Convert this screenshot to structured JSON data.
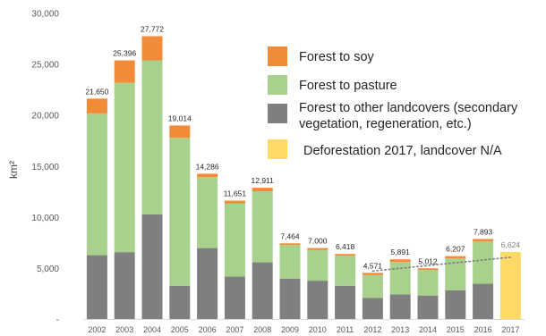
{
  "chart_data": {
    "type": "bar",
    "stacked": true,
    "ylabel": "km²",
    "ylim": [
      0,
      30000
    ],
    "yticks": [
      "-",
      "5,000",
      "10,000",
      "15,000",
      "20,000",
      "25,000",
      "30,000"
    ],
    "ytick_values": [
      0,
      5000,
      10000,
      15000,
      20000,
      25000,
      30000
    ],
    "categories": [
      "2002",
      "2003",
      "2004",
      "2005",
      "2006",
      "2007",
      "2008",
      "2009",
      "2010",
      "2011",
      "2012",
      "2013",
      "2014",
      "2015",
      "2016",
      "2017"
    ],
    "series": [
      {
        "name": "Forest to other landcovers (secondary vegetation, regeneration, etc.)",
        "color": "#7f7f7f",
        "values": [
          6300,
          6600,
          10300,
          3300,
          7000,
          4200,
          5600,
          4000,
          3800,
          3300,
          2100,
          2450,
          2350,
          2850,
          3500,
          null
        ]
      },
      {
        "name": "Forest to pasture",
        "color": "#a9d18e",
        "values": [
          13900,
          16600,
          15100,
          14500,
          6950,
          7150,
          6950,
          3300,
          3000,
          2950,
          2250,
          3200,
          2500,
          3150,
          4150,
          null
        ]
      },
      {
        "name": "Forest to soy",
        "color": "#f28b37",
        "values": [
          1450,
          2196,
          2372,
          1214,
          336,
          301,
          361,
          164,
          200,
          168,
          221,
          241,
          162,
          207,
          243,
          null
        ]
      },
      {
        "name": "Deforestation 2017, landcover N/A",
        "color": "#ffd966",
        "values": [
          null,
          null,
          null,
          null,
          null,
          null,
          null,
          null,
          null,
          null,
          null,
          null,
          null,
          null,
          null,
          6624
        ]
      }
    ],
    "totals": [
      "21,650",
      "25,396",
      "27,772",
      "19,014",
      "14,286",
      "11,651",
      "12,911",
      "7,464",
      "7,000",
      "6,418",
      "4,571",
      "5,891",
      "5,012",
      "6,207",
      "7,893",
      "6,624"
    ],
    "totals_values": [
      21650,
      25396,
      27772,
      19014,
      14286,
      11651,
      12911,
      7464,
      7000,
      6418,
      4571,
      5891,
      5012,
      6207,
      7893,
      6624
    ],
    "trendline": {
      "style": "dotted",
      "from_category": "2012",
      "to_category": "2017",
      "values": [
        4571,
        6624
      ]
    },
    "legend": {
      "position": "right",
      "items": [
        {
          "label": "Forest to soy",
          "color": "#f28b37"
        },
        {
          "label": "Forest to pasture",
          "color": "#a9d18e"
        },
        {
          "label": "Forest to other landcovers (secondary",
          "label_line2": "vegetation, regeneration, etc.)",
          "color": "#7f7f7f"
        },
        {
          "label": "Deforestation 2017, landcover N/A",
          "color": "#ffd966"
        }
      ]
    }
  }
}
